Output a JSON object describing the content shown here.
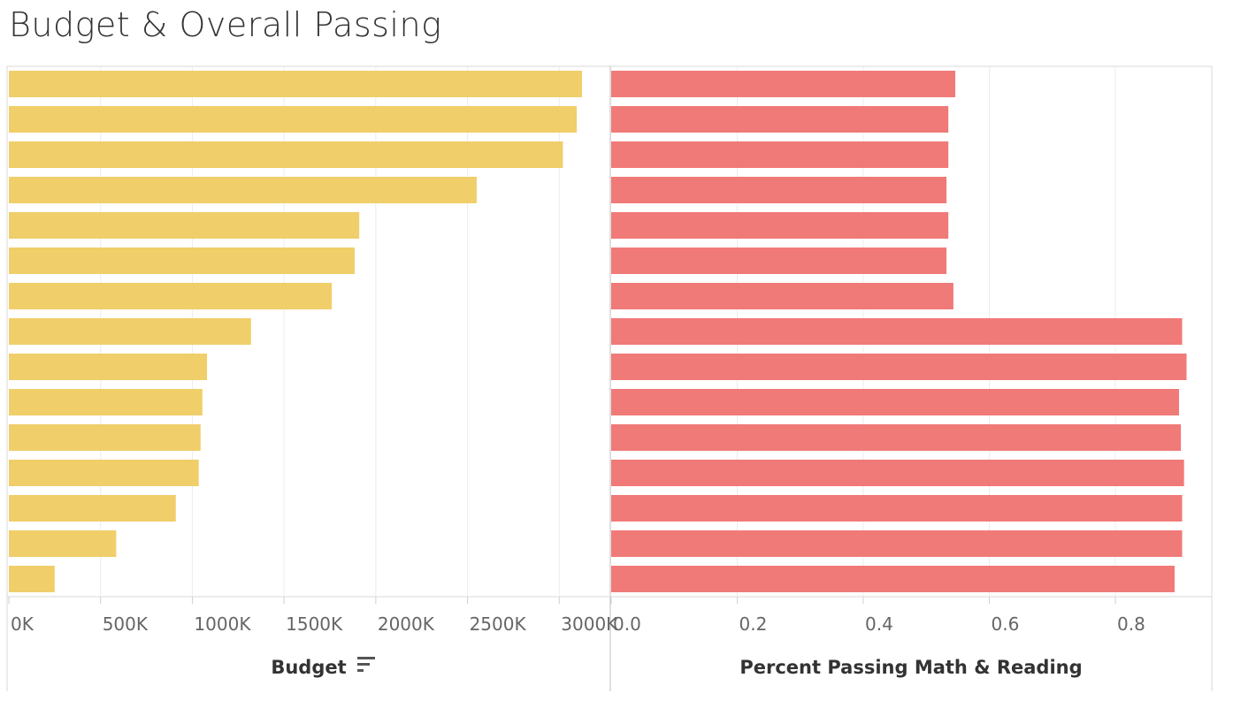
{
  "title": "Budget & Overall Passing",
  "chart_data": [
    {
      "type": "bar",
      "orientation": "horizontal",
      "xlabel": "Budget",
      "xlim": [
        0,
        3180000
      ],
      "tick_values": [
        0,
        500000,
        1000000,
        1500000,
        2000000,
        2500000,
        3000000
      ],
      "tick_labels": [
        "0K",
        "500K",
        "1000K",
        "1500K",
        "2000K",
        "2500K",
        "3000K"
      ],
      "sort_icon": "sort-descending-icon",
      "color": "#F0CE69",
      "values": [
        3124000,
        3095000,
        3020000,
        2550000,
        1910000,
        1885000,
        1760000,
        1320000,
        1080000,
        1055000,
        1045000,
        1035000,
        910000,
        585000,
        250000
      ]
    },
    {
      "type": "bar",
      "orientation": "horizontal",
      "xlabel": "Percent Passing Math & Reading",
      "xlim": [
        0,
        0.92
      ],
      "tick_values": [
        0.0,
        0.2,
        0.4,
        0.6,
        0.8
      ],
      "tick_labels": [
        "0.0",
        "0.2",
        "0.4",
        "0.6",
        "0.8"
      ],
      "color": "#F07A78",
      "values": [
        0.546,
        0.535,
        0.535,
        0.532,
        0.535,
        0.532,
        0.543,
        0.906,
        0.913,
        0.901,
        0.904,
        0.909,
        0.906,
        0.906,
        0.894
      ]
    }
  ]
}
